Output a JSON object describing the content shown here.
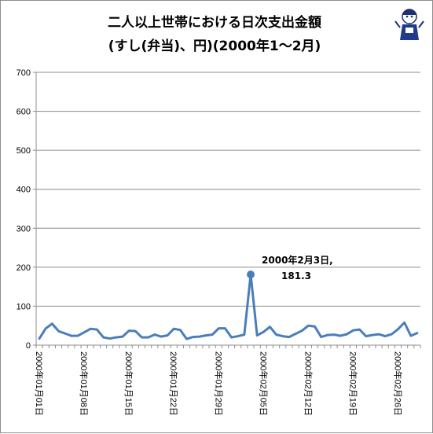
{
  "chart_data": {
    "type": "line",
    "title_lines": [
      "二人以上世帯における日次支出金額",
      "(すし(弁当)、円)(2000年1〜2月)"
    ],
    "xlabel": "",
    "ylabel": "",
    "ylim": [
      0,
      700
    ],
    "yticks": [
      0,
      100,
      200,
      300,
      400,
      500,
      600,
      700
    ],
    "grid": true,
    "legend": "none",
    "series_color": "#4a7ebb",
    "x_tick_labels": [
      "2000年01月01日",
      "2000年01月08日",
      "2000年01月15日",
      "2000年01月22日",
      "2000年01月29日",
      "2000年02月05日",
      "2000年02月12日",
      "2000年02月19日",
      "2000年02月26日"
    ],
    "x_tick_every": 7,
    "series": [
      {
        "values": [
          17,
          43,
          55,
          36,
          30,
          24,
          24,
          33,
          42,
          40,
          20,
          17,
          20,
          22,
          37,
          36,
          20,
          20,
          27,
          22,
          25,
          42,
          39,
          16,
          21,
          22,
          25,
          27,
          43,
          43,
          20,
          23,
          27,
          181.3,
          25,
          34,
          47,
          27,
          23,
          21,
          29,
          37,
          50,
          48,
          21,
          26,
          27,
          24,
          28,
          38,
          40,
          23,
          26,
          28,
          23,
          28,
          41,
          58,
          24,
          31
        ]
      }
    ],
    "annotation": {
      "index": 33,
      "text_lines": [
        "2000年2月3日,",
        "181.3"
      ]
    }
  }
}
